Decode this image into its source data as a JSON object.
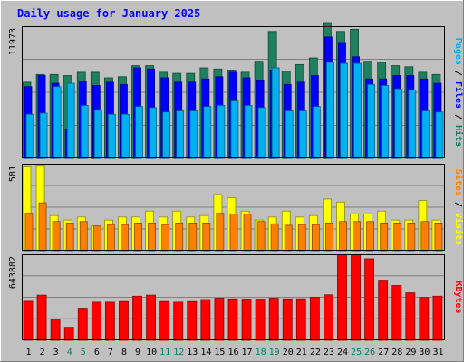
{
  "chart_data": {
    "type": "bar",
    "title": "Daily usage for January 2025",
    "categories": [
      "1",
      "2",
      "3",
      "4",
      "5",
      "6",
      "7",
      "8",
      "9",
      "10",
      "11",
      "12",
      "13",
      "14",
      "15",
      "16",
      "17",
      "18",
      "19",
      "20",
      "21",
      "22",
      "23",
      "24",
      "25",
      "26",
      "27",
      "28",
      "29",
      "30",
      "31"
    ],
    "weekend_days": [
      "4",
      "5",
      "11",
      "12",
      "18",
      "19",
      "25",
      "26"
    ],
    "panels": [
      {
        "id": "pages-files-hits",
        "ylim": [
          0,
          11973
        ],
        "max_label": "11973",
        "ylabel_parts": [
          {
            "text": "Pages",
            "color": "#00b0f0"
          },
          {
            "text": " / ",
            "color": "#000000"
          },
          {
            "text": "Files",
            "color": "#0000ff"
          },
          {
            "text": " / ",
            "color": "#000000"
          },
          {
            "text": "Hits",
            "color": "#008060"
          }
        ],
        "series": [
          {
            "name": "Hits",
            "color": "#1f8060",
            "values": [
              6900,
              7600,
              7600,
              7500,
              7800,
              7800,
              7300,
              7400,
              8400,
              8400,
              7800,
              7700,
              7700,
              8200,
              8100,
              8000,
              7800,
              8800,
              11500,
              7900,
              8500,
              9100,
              12300,
              11500,
              11700,
              8800,
              8700,
              8400,
              8300,
              7800,
              7600
            ]
          },
          {
            "name": "Files",
            "color": "#0000ff",
            "values": [
              6500,
              7500,
              6800,
              2600,
              7000,
              6600,
              6900,
              6700,
              8200,
              8100,
              7300,
              6900,
              6900,
              7200,
              7400,
              7800,
              7300,
              7100,
              8000,
              6700,
              6900,
              7500,
              11000,
              10500,
              9200,
              7200,
              7200,
              7500,
              7500,
              7200,
              6800
            ]
          },
          {
            "name": "Pages",
            "color": "#00b0f0",
            "values": [
              4000,
              4100,
              6500,
              6800,
              4800,
              4400,
              4000,
              4000,
              4700,
              4600,
              4200,
              4300,
              4300,
              4700,
              4800,
              5200,
              4800,
              4600,
              8200,
              4300,
              4300,
              4700,
              8700,
              8600,
              8600,
              6700,
              6600,
              6300,
              6200,
              4300,
              4200
            ]
          }
        ]
      },
      {
        "id": "visits-sites",
        "ylim": [
          0,
          581
        ],
        "max_label": "581",
        "ylabel_parts": [
          {
            "text": "Sites",
            "color": "#ff8000"
          },
          {
            "text": " / ",
            "color": "#000000"
          },
          {
            "text": "Visits",
            "color": "#ffff00"
          }
        ],
        "series": [
          {
            "name": "Visits",
            "color": "#ffff00",
            "values": [
              565,
              570,
              235,
              205,
              225,
              165,
              205,
              225,
              225,
              265,
              225,
              265,
              225,
              235,
              375,
              355,
              265,
              205,
              225,
              265,
              225,
              235,
              345,
              325,
              245,
              245,
              265,
              205,
              205,
              335,
              205
            ]
          },
          {
            "name": "Sites",
            "color": "#ff8000",
            "values": [
              250,
              320,
              195,
              185,
              195,
              165,
              175,
              175,
              185,
              185,
              175,
              185,
              185,
              185,
              250,
              245,
              245,
              195,
              180,
              170,
              175,
              175,
              185,
              195,
              195,
              195,
              185,
              185,
              185,
              195,
              185
            ]
          }
        ]
      },
      {
        "id": "kbytes",
        "ylim": [
          0,
          643882
        ],
        "max_label": "643882",
        "ylabel_parts": [
          {
            "text": "KBytes",
            "color": "#ff0000"
          }
        ],
        "series": [
          {
            "name": "KBytes",
            "color": "#ff0000",
            "values": [
              292000,
              338000,
              152000,
              97000,
              240000,
              285000,
              285000,
              290000,
              330000,
              338000,
              290000,
              285000,
              290000,
              305000,
              315000,
              310000,
              308000,
              308000,
              315000,
              310000,
              310000,
              322000,
              340000,
              640000,
              640000,
              610000,
              450000,
              410000,
              355000,
              320000,
              330000
            ]
          }
        ]
      }
    ]
  }
}
